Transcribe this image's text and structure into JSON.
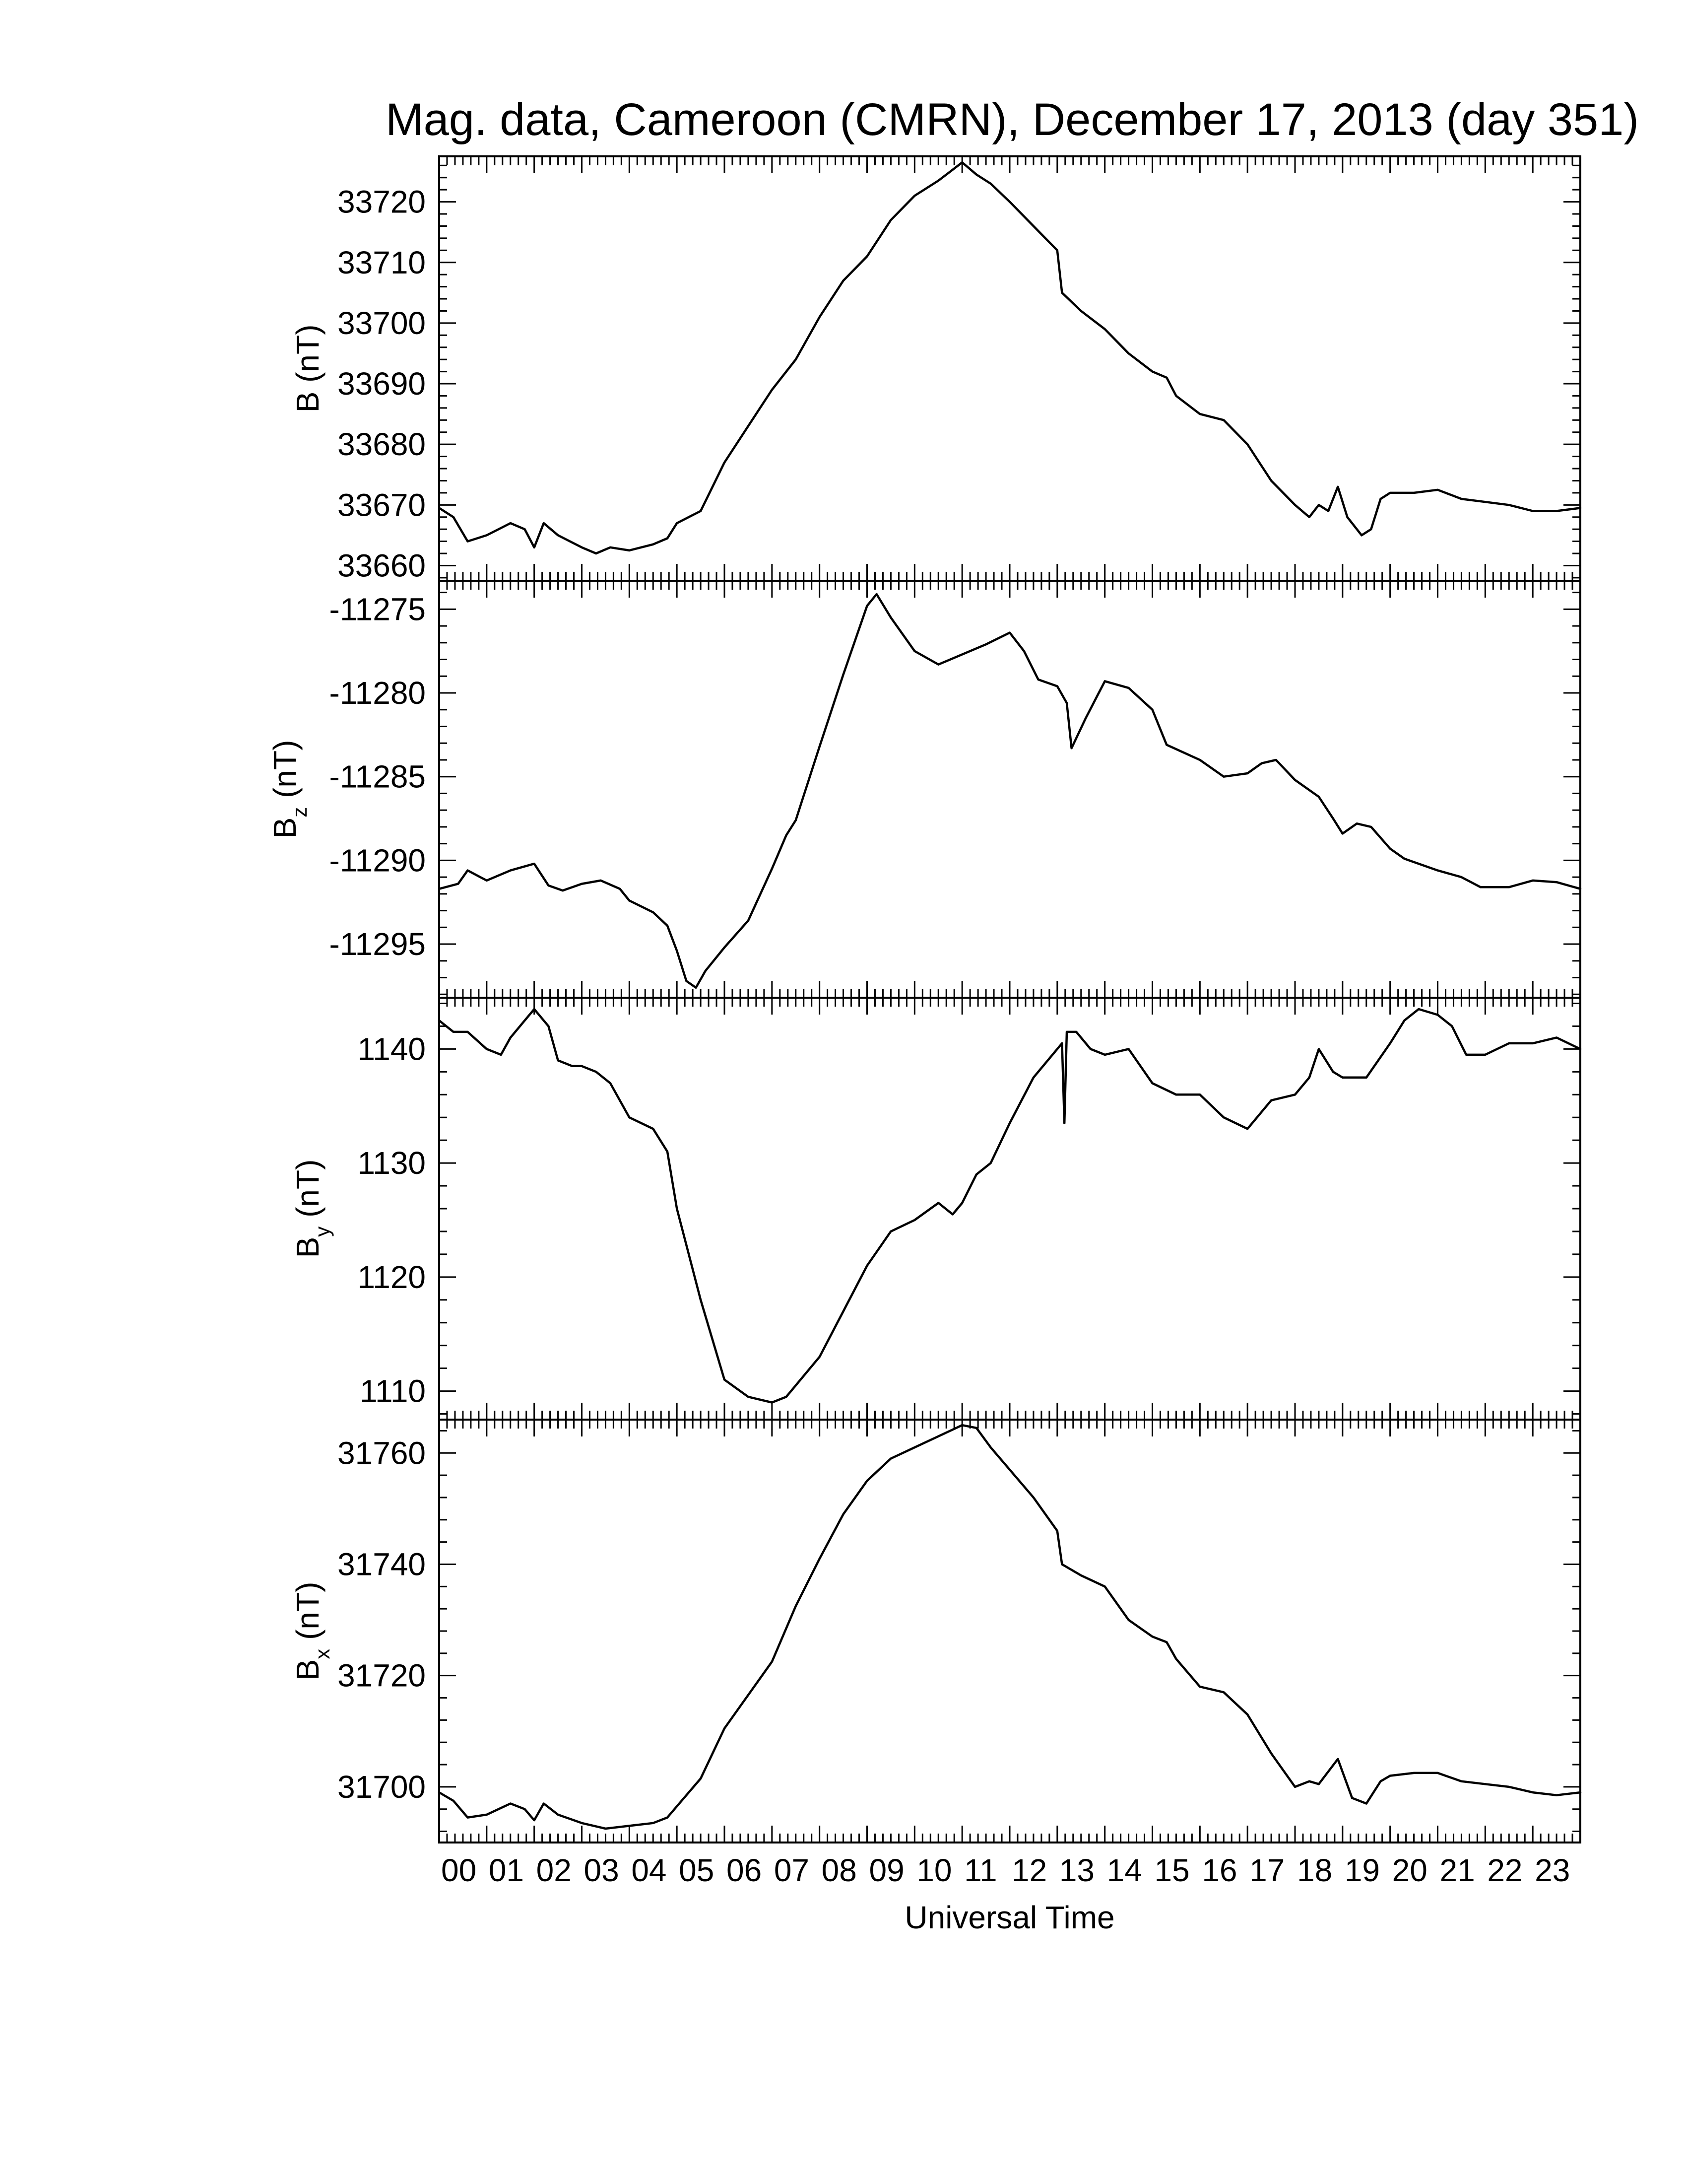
{
  "title": "Mag. data, Cameroon (CMRN), December 17, 2013 (day 351)",
  "xlabel": "Universal Time",
  "chart_data": {
    "type": "line",
    "title": "Mag. data, Cameroon (CMRN), December 17, 2013 (day 351)",
    "xlabel": "Universal Time",
    "x_unit": "hours UT",
    "xlim": [
      0,
      24
    ],
    "x_ticks": [
      "00",
      "01",
      "02",
      "03",
      "04",
      "05",
      "06",
      "07",
      "08",
      "09",
      "10",
      "11",
      "12",
      "13",
      "14",
      "15",
      "16",
      "17",
      "18",
      "19",
      "20",
      "21",
      "22",
      "23"
    ],
    "grid": false,
    "panels": [
      {
        "id": "B",
        "ylabel_main": "B",
        "ylabel_sub": "",
        "ylabel_unit": " (nT)",
        "ylim": [
          33657.5,
          33727.5
        ],
        "y_ticks": [
          33660,
          33670,
          33680,
          33690,
          33700,
          33710,
          33720
        ],
        "y_tick_labels": [
          "33660",
          "33670",
          "33680",
          "33690",
          "33700",
          "33710",
          "33720"
        ],
        "points": [
          [
            0.0,
            33669.5
          ],
          [
            0.3,
            33668
          ],
          [
            0.6,
            33664
          ],
          [
            1.0,
            33665
          ],
          [
            1.5,
            33667
          ],
          [
            1.8,
            33666
          ],
          [
            2.0,
            33663
          ],
          [
            2.2,
            33667
          ],
          [
            2.5,
            33665
          ],
          [
            3.0,
            33663
          ],
          [
            3.3,
            33662
          ],
          [
            3.6,
            33663
          ],
          [
            4.0,
            33662.5
          ],
          [
            4.5,
            33663.5
          ],
          [
            4.8,
            33664.5
          ],
          [
            5.0,
            33667
          ],
          [
            5.5,
            33669
          ],
          [
            6.0,
            33677
          ],
          [
            6.5,
            33683
          ],
          [
            7.0,
            33689
          ],
          [
            7.5,
            33694
          ],
          [
            8.0,
            33701
          ],
          [
            8.5,
            33707
          ],
          [
            9.0,
            33711
          ],
          [
            9.5,
            33717
          ],
          [
            10.0,
            33721
          ],
          [
            10.5,
            33723.5
          ],
          [
            11.0,
            33726.5
          ],
          [
            11.3,
            33724.5
          ],
          [
            11.6,
            33723
          ],
          [
            12.0,
            33720
          ],
          [
            12.5,
            33716
          ],
          [
            13.0,
            33712
          ],
          [
            13.1,
            33705
          ],
          [
            13.5,
            33702
          ],
          [
            14.0,
            33699
          ],
          [
            14.5,
            33695
          ],
          [
            15.0,
            33692
          ],
          [
            15.3,
            33691
          ],
          [
            15.5,
            33688
          ],
          [
            16.0,
            33685
          ],
          [
            16.5,
            33684
          ],
          [
            17.0,
            33680
          ],
          [
            17.5,
            33674
          ],
          [
            18.0,
            33670
          ],
          [
            18.3,
            33668
          ],
          [
            18.5,
            33670
          ],
          [
            18.7,
            33669
          ],
          [
            18.9,
            33673
          ],
          [
            19.1,
            33668
          ],
          [
            19.4,
            33665
          ],
          [
            19.6,
            33666
          ],
          [
            19.8,
            33671
          ],
          [
            20.0,
            33672
          ],
          [
            20.5,
            33672
          ],
          [
            21.0,
            33672.5
          ],
          [
            21.5,
            33671
          ],
          [
            22.0,
            33670.5
          ],
          [
            22.5,
            33670
          ],
          [
            23.0,
            33669
          ],
          [
            23.5,
            33669
          ],
          [
            24.0,
            33669.5
          ]
        ]
      },
      {
        "id": "Bz",
        "ylabel_main": "B",
        "ylabel_sub": "z",
        "ylabel_unit": " (nT)",
        "ylim": [
          -11298.2,
          -11273.3
        ],
        "y_ticks": [
          -11275,
          -11280,
          -11285,
          -11290,
          -11295
        ],
        "y_tick_labels": [
          "-11275",
          "-11280",
          "-11285",
          "-11290",
          "-11295"
        ],
        "points": [
          [
            0.0,
            -11291.7
          ],
          [
            0.4,
            -11291.4
          ],
          [
            0.6,
            -11290.6
          ],
          [
            1.0,
            -11291.2
          ],
          [
            1.5,
            -11290.6
          ],
          [
            2.0,
            -11290.2
          ],
          [
            2.3,
            -11291.5
          ],
          [
            2.6,
            -11291.8
          ],
          [
            3.0,
            -11291.4
          ],
          [
            3.4,
            -11291.2
          ],
          [
            3.8,
            -11291.7
          ],
          [
            4.0,
            -11292.4
          ],
          [
            4.5,
            -11293.1
          ],
          [
            4.8,
            -11293.9
          ],
          [
            5.0,
            -11295.4
          ],
          [
            5.2,
            -11297.2
          ],
          [
            5.4,
            -11297.6
          ],
          [
            5.6,
            -11296.6
          ],
          [
            6.0,
            -11295.2
          ],
          [
            6.5,
            -11293.6
          ],
          [
            7.0,
            -11290.5
          ],
          [
            7.3,
            -11288.5
          ],
          [
            7.5,
            -11287.6
          ],
          [
            8.0,
            -11283.2
          ],
          [
            8.5,
            -11278.9
          ],
          [
            9.0,
            -11274.8
          ],
          [
            9.2,
            -11274.1
          ],
          [
            9.5,
            -11275.5
          ],
          [
            10.0,
            -11277.5
          ],
          [
            10.5,
            -11278.3
          ],
          [
            11.0,
            -11277.7
          ],
          [
            11.5,
            -11277.1
          ],
          [
            12.0,
            -11276.4
          ],
          [
            12.3,
            -11277.5
          ],
          [
            12.6,
            -11279.2
          ],
          [
            13.0,
            -11279.6
          ],
          [
            13.2,
            -11280.6
          ],
          [
            13.3,
            -11283.3
          ],
          [
            13.6,
            -11281.5
          ],
          [
            14.0,
            -11279.3
          ],
          [
            14.5,
            -11279.7
          ],
          [
            15.0,
            -11281.0
          ],
          [
            15.3,
            -11283.1
          ],
          [
            16.0,
            -11284.0
          ],
          [
            16.5,
            -11285.0
          ],
          [
            17.0,
            -11284.8
          ],
          [
            17.3,
            -11284.2
          ],
          [
            17.6,
            -11284.0
          ],
          [
            18.0,
            -11285.2
          ],
          [
            18.5,
            -11286.2
          ],
          [
            18.8,
            -11287.5
          ],
          [
            19.0,
            -11288.4
          ],
          [
            19.3,
            -11287.8
          ],
          [
            19.6,
            -11288.0
          ],
          [
            20.0,
            -11289.3
          ],
          [
            20.3,
            -11289.9
          ],
          [
            21.0,
            -11290.6
          ],
          [
            21.5,
            -11291.0
          ],
          [
            21.9,
            -11291.6
          ],
          [
            22.5,
            -11291.6
          ],
          [
            23.0,
            -11291.2
          ],
          [
            23.5,
            -11291.3
          ],
          [
            24.0,
            -11291.7
          ]
        ]
      },
      {
        "id": "By",
        "ylabel_main": "B",
        "ylabel_sub": "y",
        "ylabel_unit": " (nT)",
        "ylim": [
          1107.5,
          1144.5
        ],
        "y_ticks": [
          1110,
          1120,
          1130,
          1140
        ],
        "y_tick_labels": [
          "1110",
          "1120",
          "1130",
          "1140"
        ],
        "points": [
          [
            0.0,
            1142.5
          ],
          [
            0.3,
            1141.5
          ],
          [
            0.6,
            1141.5
          ],
          [
            1.0,
            1140
          ],
          [
            1.3,
            1139.5
          ],
          [
            1.5,
            1141
          ],
          [
            1.8,
            1142.5
          ],
          [
            2.0,
            1143.5
          ],
          [
            2.3,
            1142
          ],
          [
            2.5,
            1139
          ],
          [
            2.8,
            1138.5
          ],
          [
            3.0,
            1138.5
          ],
          [
            3.3,
            1138
          ],
          [
            3.6,
            1137
          ],
          [
            4.0,
            1134
          ],
          [
            4.5,
            1133
          ],
          [
            4.8,
            1131
          ],
          [
            5.0,
            1126
          ],
          [
            5.5,
            1118
          ],
          [
            6.0,
            1111
          ],
          [
            6.5,
            1109.5
          ],
          [
            7.0,
            1109
          ],
          [
            7.3,
            1109.5
          ],
          [
            7.5,
            1110.5
          ],
          [
            8.0,
            1113
          ],
          [
            8.5,
            1117
          ],
          [
            9.0,
            1121
          ],
          [
            9.5,
            1124
          ],
          [
            10.0,
            1125
          ],
          [
            10.5,
            1126.5
          ],
          [
            10.8,
            1125.5
          ],
          [
            11.0,
            1126.5
          ],
          [
            11.3,
            1129
          ],
          [
            11.6,
            1130
          ],
          [
            12.0,
            1133.5
          ],
          [
            12.5,
            1137.5
          ],
          [
            13.0,
            1140
          ],
          [
            13.1,
            1140.5
          ],
          [
            13.15,
            1133.5
          ],
          [
            13.2,
            1141.5
          ],
          [
            13.4,
            1141.5
          ],
          [
            13.7,
            1140
          ],
          [
            14.0,
            1139.5
          ],
          [
            14.5,
            1140
          ],
          [
            15.0,
            1137
          ],
          [
            15.5,
            1136
          ],
          [
            16.0,
            1136
          ],
          [
            16.5,
            1134
          ],
          [
            17.0,
            1133
          ],
          [
            17.5,
            1135.5
          ],
          [
            18.0,
            1136
          ],
          [
            18.3,
            1137.5
          ],
          [
            18.5,
            1140
          ],
          [
            18.8,
            1138
          ],
          [
            19.0,
            1137.5
          ],
          [
            19.5,
            1137.5
          ],
          [
            20.0,
            1140.5
          ],
          [
            20.3,
            1142.5
          ],
          [
            20.6,
            1143.5
          ],
          [
            21.0,
            1143
          ],
          [
            21.3,
            1142
          ],
          [
            21.6,
            1139.5
          ],
          [
            22.0,
            1139.5
          ],
          [
            22.5,
            1140.5
          ],
          [
            23.0,
            1140.5
          ],
          [
            23.5,
            1141
          ],
          [
            24.0,
            1140
          ]
        ]
      },
      {
        "id": "Bx",
        "ylabel_main": "B",
        "ylabel_sub": "x",
        "ylabel_unit": " (nT)",
        "ylim": [
          31690,
          31766
        ],
        "y_ticks": [
          31700,
          31720,
          31740,
          31760
        ],
        "y_tick_labels": [
          "31700",
          "31720",
          "31740",
          "31760"
        ],
        "points": [
          [
            0.0,
            31699
          ],
          [
            0.3,
            31697.5
          ],
          [
            0.6,
            31694.5
          ],
          [
            1.0,
            31695
          ],
          [
            1.5,
            31697
          ],
          [
            1.8,
            31696
          ],
          [
            2.0,
            31694
          ],
          [
            2.2,
            31697
          ],
          [
            2.5,
            31695
          ],
          [
            3.0,
            31693.5
          ],
          [
            3.5,
            31692.5
          ],
          [
            4.0,
            31693
          ],
          [
            4.5,
            31693.5
          ],
          [
            4.8,
            31694.5
          ],
          [
            5.0,
            31696.5
          ],
          [
            5.5,
            31701.5
          ],
          [
            6.0,
            31710.5
          ],
          [
            6.5,
            31716.5
          ],
          [
            7.0,
            31722.5
          ],
          [
            7.5,
            31732.5
          ],
          [
            8.0,
            31741
          ],
          [
            8.5,
            31749
          ],
          [
            9.0,
            31755
          ],
          [
            9.5,
            31759
          ],
          [
            10.0,
            31761
          ],
          [
            10.5,
            31763
          ],
          [
            11.0,
            31765
          ],
          [
            11.3,
            31764.5
          ],
          [
            11.6,
            31761
          ],
          [
            12.0,
            31757
          ],
          [
            12.5,
            31752
          ],
          [
            13.0,
            31746
          ],
          [
            13.1,
            31740
          ],
          [
            13.5,
            31738
          ],
          [
            14.0,
            31736
          ],
          [
            14.5,
            31730
          ],
          [
            15.0,
            31727
          ],
          [
            15.3,
            31726
          ],
          [
            15.5,
            31723
          ],
          [
            16.0,
            31718
          ],
          [
            16.5,
            31717
          ],
          [
            17.0,
            31713
          ],
          [
            17.5,
            31706
          ],
          [
            18.0,
            31700
          ],
          [
            18.3,
            31701
          ],
          [
            18.5,
            31700.5
          ],
          [
            18.9,
            31705
          ],
          [
            19.2,
            31698
          ],
          [
            19.5,
            31697
          ],
          [
            19.8,
            31701
          ],
          [
            20.0,
            31702
          ],
          [
            20.5,
            31702.5
          ],
          [
            21.0,
            31702.5
          ],
          [
            21.5,
            31701
          ],
          [
            22.0,
            31700.5
          ],
          [
            22.5,
            31700
          ],
          [
            23.0,
            31699
          ],
          [
            23.5,
            31698.5
          ],
          [
            24.0,
            31699
          ]
        ]
      }
    ]
  }
}
